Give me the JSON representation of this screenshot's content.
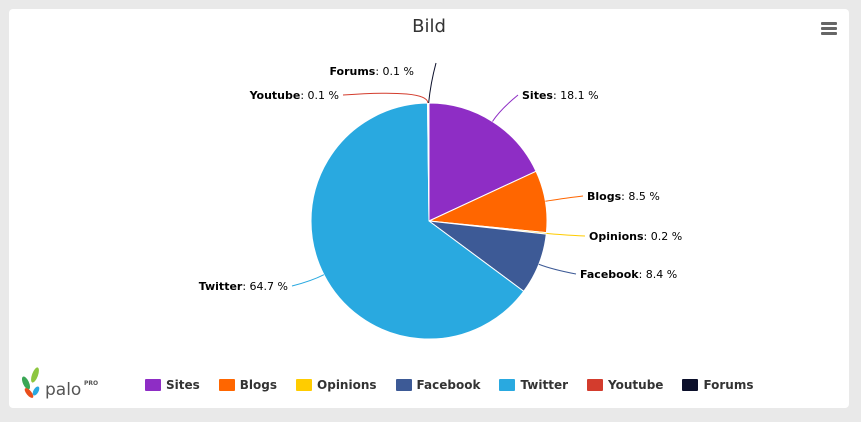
{
  "chart_data": {
    "type": "pie",
    "title": "Bild",
    "unit": "%",
    "slices": [
      {
        "name": "Sites",
        "value": 18.1,
        "color": "#8e2dc5",
        "label_side": "right"
      },
      {
        "name": "Blogs",
        "value": 8.5,
        "color": "#ff6600",
        "label_side": "right"
      },
      {
        "name": "Opinions",
        "value": 0.2,
        "color": "#ffcc00",
        "label_side": "right"
      },
      {
        "name": "Facebook",
        "value": 8.4,
        "color": "#3d5a96",
        "label_side": "right"
      },
      {
        "name": "Twitter",
        "value": 64.7,
        "color": "#29a9e0",
        "label_side": "left"
      },
      {
        "name": "Youtube",
        "value": 0.1,
        "color": "#d33c2d",
        "label_side": "left"
      },
      {
        "name": "Forums",
        "value": 0.1,
        "color": "#0b0f2a",
        "label_side": "left"
      }
    ],
    "legend_position": "bottom"
  },
  "brand": {
    "name": "palo",
    "suffix": "PRO"
  },
  "menu": {
    "icon": "hamburger-menu-icon"
  }
}
